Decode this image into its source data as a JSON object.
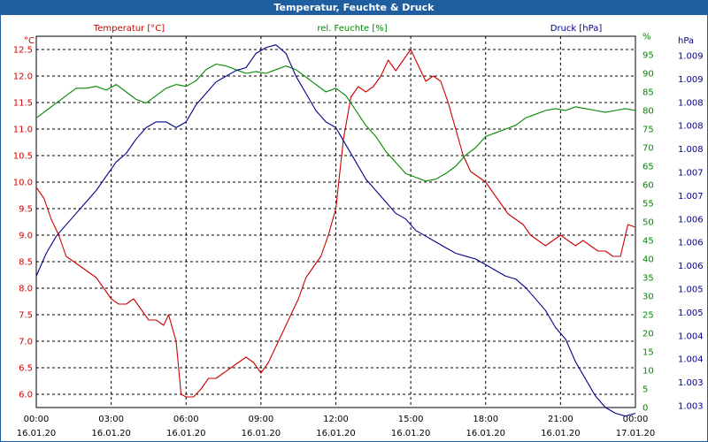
{
  "window": {
    "title": "Temperatur, Feuchte & Druck"
  },
  "chart_data": {
    "type": "line",
    "title": "Temperatur, Feuchte & Druck",
    "grid": true,
    "x_tick_labels": [
      {
        "time": "00:00",
        "date": "16.01.20"
      },
      {
        "time": "03:00",
        "date": "16.01.20"
      },
      {
        "time": "06:00",
        "date": "16.01.20"
      },
      {
        "time": "09:00",
        "date": "16.01.20"
      },
      {
        "time": "12:00",
        "date": "16.01.20"
      },
      {
        "time": "15:00",
        "date": "16.01.20"
      },
      {
        "time": "18:00",
        "date": "16.01.20"
      },
      {
        "time": "21:00",
        "date": "16.01.20"
      },
      {
        "time": "00:00",
        "date": "17.01.20"
      }
    ],
    "xlim_hours": [
      0,
      24
    ],
    "axes": {
      "left": {
        "unit": "°C",
        "ylim": [
          5.75,
          12.75
        ],
        "ticks": [
          "6.0",
          "6.5",
          "7.0",
          "7.5",
          "8.0",
          "8.5",
          "9.0",
          "9.5",
          "10.0",
          "10.5",
          "11.0",
          "11.5",
          "12.0",
          "12.5"
        ],
        "color": "#cc0000"
      },
      "right1": {
        "unit": "%",
        "ylim": [
          0,
          100
        ],
        "ticks": [
          "0",
          "5",
          "10",
          "15",
          "20",
          "25",
          "30",
          "35",
          "40",
          "45",
          "50",
          "55",
          "60",
          "65",
          "70",
          "75",
          "80",
          "85",
          "90",
          "95",
          "%"
        ],
        "color": "#008800"
      },
      "right2": {
        "unit": "hPa",
        "ylim": [
          1.003,
          1.0095
        ],
        "ticks": [
          "1.003",
          "1.003",
          "1.004",
          "1.004",
          "1.005",
          "1.005",
          "1.006",
          "1.006",
          "1.006",
          "1.007",
          "1.007",
          "1.008",
          "1.008",
          "1.008",
          "1.009",
          "1.009"
        ],
        "color": "#00008b"
      }
    },
    "series": [
      {
        "name": "Temperatur [°C]",
        "axis": "left",
        "color": "#cc0000",
        "x": [
          0,
          0.3,
          0.6,
          0.9,
          1.2,
          1.5,
          1.8,
          2.1,
          2.4,
          2.7,
          3.0,
          3.3,
          3.6,
          3.9,
          4.2,
          4.5,
          4.8,
          5.1,
          5.3,
          5.6,
          5.8,
          6.0,
          6.3,
          6.6,
          6.9,
          7.2,
          7.5,
          7.8,
          8.1,
          8.4,
          8.7,
          9.0,
          9.3,
          9.6,
          9.9,
          10.2,
          10.5,
          10.8,
          11.1,
          11.4,
          11.7,
          12.0,
          12.3,
          12.6,
          12.9,
          13.2,
          13.5,
          13.8,
          14.1,
          14.4,
          14.7,
          15.0,
          15.3,
          15.6,
          15.9,
          16.2,
          16.5,
          16.8,
          17.1,
          17.4,
          17.7,
          18.0,
          18.3,
          18.6,
          18.9,
          19.2,
          19.5,
          19.8,
          20.1,
          20.4,
          20.7,
          21.0,
          21.3,
          21.6,
          21.9,
          22.2,
          22.5,
          22.8,
          23.1,
          23.4,
          23.7,
          24.0
        ],
        "values": [
          9.9,
          9.7,
          9.3,
          9.0,
          8.6,
          8.5,
          8.4,
          8.3,
          8.2,
          8.0,
          7.8,
          7.7,
          7.7,
          7.8,
          7.6,
          7.4,
          7.4,
          7.3,
          7.5,
          7.0,
          6.0,
          5.95,
          5.95,
          6.1,
          6.3,
          6.3,
          6.4,
          6.5,
          6.6,
          6.7,
          6.6,
          6.4,
          6.6,
          6.9,
          7.2,
          7.5,
          7.8,
          8.2,
          8.4,
          8.6,
          9.0,
          9.5,
          10.8,
          11.6,
          11.8,
          11.7,
          11.8,
          12.0,
          12.3,
          12.1,
          12.3,
          12.5,
          12.2,
          11.9,
          12.0,
          11.9,
          11.5,
          11.0,
          10.5,
          10.2,
          10.1,
          10.0,
          9.8,
          9.6,
          9.4,
          9.3,
          9.2,
          9.0,
          8.9,
          8.8,
          8.9,
          9.0,
          8.9,
          8.8,
          8.9,
          8.8,
          8.7,
          8.7,
          8.6,
          8.6,
          9.2,
          9.15
        ]
      },
      {
        "name": "rel. Feuchte [%]",
        "axis": "right1",
        "color": "#008800",
        "x": [
          0,
          0.4,
          0.8,
          1.2,
          1.6,
          2.0,
          2.4,
          2.8,
          3.2,
          3.6,
          4.0,
          4.4,
          4.8,
          5.2,
          5.6,
          6.0,
          6.4,
          6.8,
          7.2,
          7.6,
          8.0,
          8.4,
          8.8,
          9.2,
          9.6,
          10.0,
          10.4,
          10.8,
          11.2,
          11.6,
          12.0,
          12.4,
          12.8,
          13.2,
          13.6,
          14.0,
          14.4,
          14.8,
          15.2,
          15.6,
          16.0,
          16.4,
          16.8,
          17.2,
          17.6,
          18.0,
          18.4,
          18.8,
          19.2,
          19.6,
          20.0,
          20.4,
          20.8,
          21.2,
          21.6,
          22.0,
          22.4,
          22.8,
          23.2,
          23.6,
          24.0
        ],
        "values": [
          78,
          80,
          82,
          84,
          86,
          86,
          86.5,
          85.5,
          87,
          85,
          83,
          82,
          84,
          86,
          87,
          86.5,
          88,
          91,
          92.5,
          92,
          91,
          90,
          90.5,
          90,
          91,
          92,
          91,
          89,
          87,
          85,
          86,
          84,
          80,
          76,
          73,
          69,
          66,
          63,
          62,
          61,
          61.5,
          63,
          65,
          68,
          70,
          73,
          74,
          75,
          76,
          78,
          79,
          80,
          80.5,
          80,
          81,
          80.5,
          80,
          79.5,
          80,
          80.5,
          80
        ]
      },
      {
        "name": "Druck [hPa]",
        "axis": "right2",
        "color": "#00008b",
        "x": [
          0,
          0.4,
          0.8,
          1.2,
          1.6,
          2.0,
          2.4,
          2.8,
          3.2,
          3.6,
          4.0,
          4.4,
          4.8,
          5.2,
          5.6,
          6.0,
          6.4,
          6.8,
          7.2,
          7.6,
          8.0,
          8.4,
          8.8,
          9.2,
          9.6,
          10.0,
          10.4,
          10.8,
          11.2,
          11.6,
          12.0,
          12.4,
          12.8,
          13.2,
          13.6,
          14.0,
          14.4,
          14.8,
          15.2,
          15.6,
          16.0,
          16.4,
          16.8,
          17.2,
          17.6,
          18.0,
          18.4,
          18.8,
          19.2,
          19.6,
          20.0,
          20.4,
          20.8,
          21.2,
          21.6,
          22.0,
          22.4,
          22.8,
          23.2,
          23.6,
          24.0
        ],
        "values": [
          1.0053,
          1.0057,
          1.006,
          1.0062,
          1.0064,
          1.0066,
          1.0068,
          1.00705,
          1.0073,
          1.00745,
          1.0077,
          1.0079,
          1.008,
          1.008,
          1.0079,
          1.008,
          1.0083,
          1.0085,
          1.0087,
          1.0088,
          1.0089,
          1.00895,
          1.0092,
          1.0093,
          1.00935,
          1.0092,
          1.0088,
          1.0085,
          1.0082,
          1.008,
          1.0079,
          1.0076,
          1.0073,
          1.007,
          1.0068,
          1.0066,
          1.0064,
          1.0063,
          1.0061,
          1.006,
          1.0059,
          1.0058,
          1.0057,
          1.00565,
          1.0056,
          1.0055,
          1.0054,
          1.0053,
          1.00525,
          1.0051,
          1.0049,
          1.0047,
          1.0044,
          1.0042,
          1.0038,
          1.0035,
          1.0032,
          1.003,
          1.0029,
          1.00285,
          1.0029
        ]
      }
    ]
  }
}
